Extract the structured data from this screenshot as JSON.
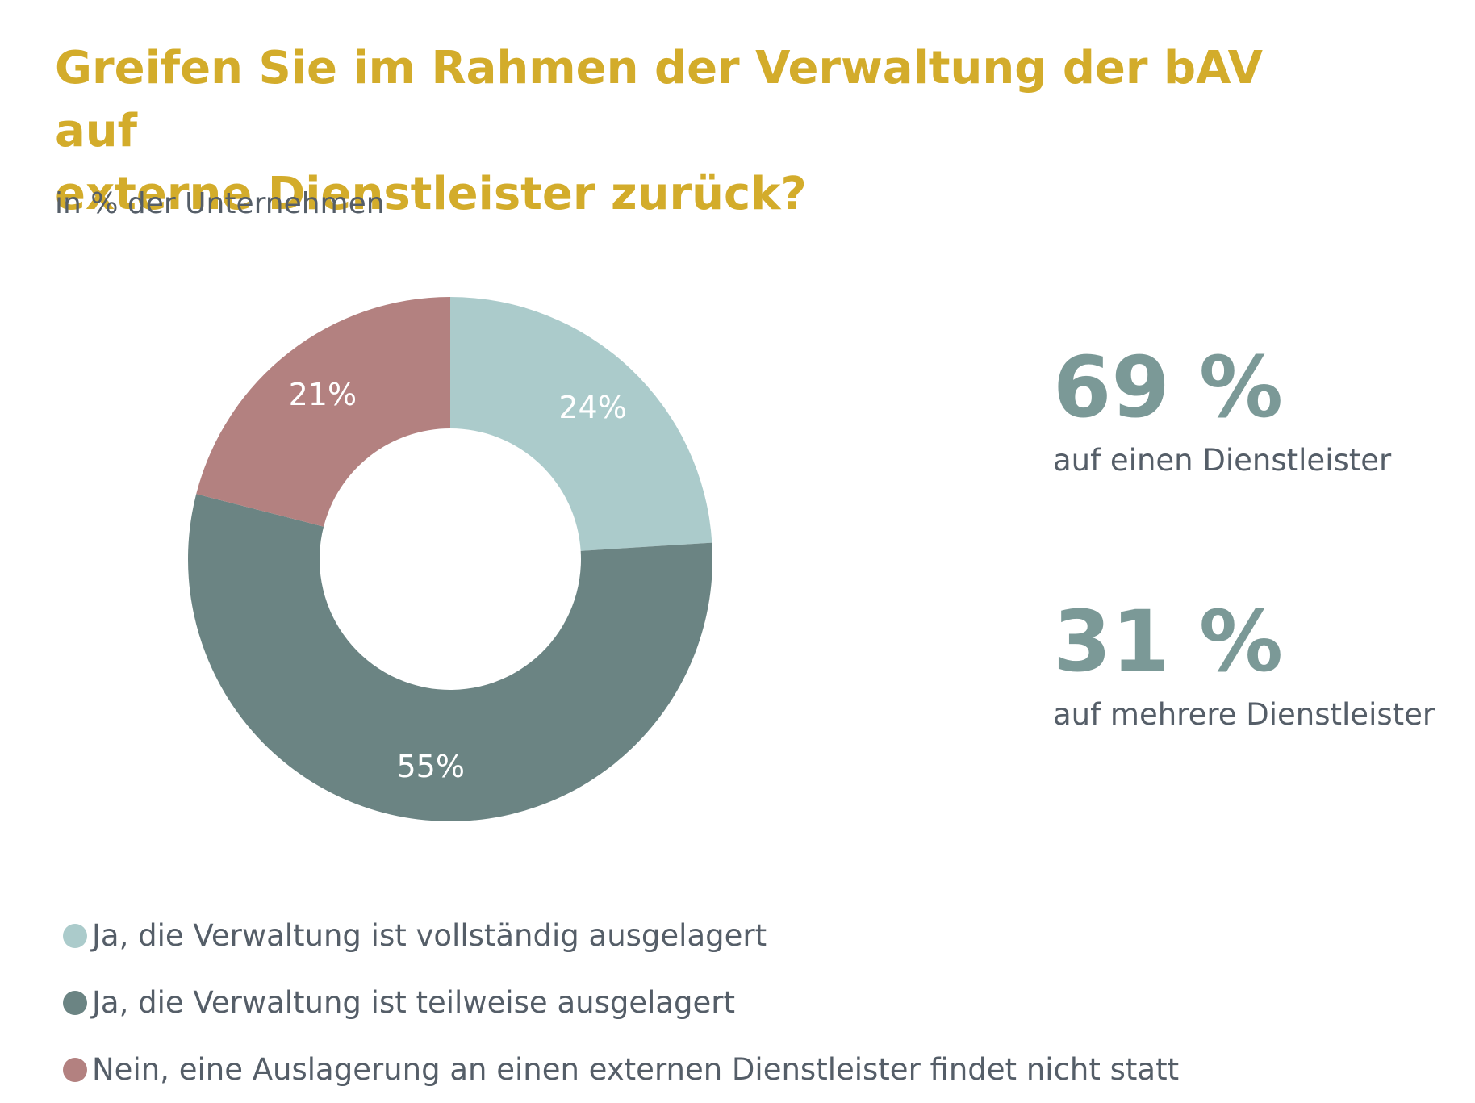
{
  "chart_data": {
    "type": "pie",
    "title": "Greifen Sie im Rahmen der Verwaltung der bAV auf\nexterne Dienstleister zurück?",
    "subtitle": "in % der Unternehmen",
    "donut": true,
    "legend_position": "bottom-left",
    "slices": [
      {
        "name": "Ja, die Verwaltung ist vollständig ausgelagert",
        "value": 24,
        "label": "24%",
        "color": "#ABCBCB"
      },
      {
        "name": "Ja, die Verwaltung ist teilweise ausgelagert",
        "value": 55,
        "label": "55%",
        "color": "#6B8483"
      },
      {
        "name": "Nein, eine Auslagerung an einen externen Dienstleister findet nicht statt",
        "value": 21,
        "label": "21%",
        "color": "#B38180"
      }
    ]
  },
  "callouts": [
    {
      "value": "69 %",
      "caption": "auf einen Dienstleister"
    },
    {
      "value": "31 %",
      "caption": "auf mehrere Dienstleister"
    }
  ],
  "colors": {
    "title": "#D3AC2B",
    "text": "#555E68",
    "callout": "#7B9997",
    "slice_label": "#FFFFFF"
  }
}
